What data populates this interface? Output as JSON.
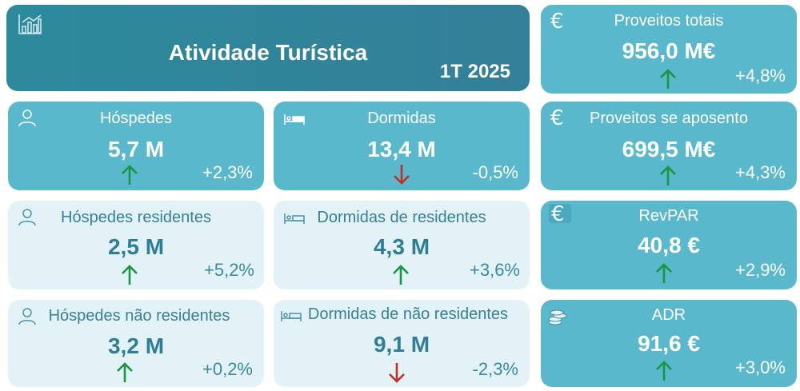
{
  "header": {
    "title": "Atividade Turística",
    "period": "1T 2025"
  },
  "cards": {
    "hospedes": {
      "label": "Hóspedes",
      "value": "5,7 M",
      "change": "+2,3%",
      "trend": "up"
    },
    "dormidas": {
      "label": "Dormidas",
      "value": "13,4 M",
      "change": "-0,5%",
      "trend": "down"
    },
    "hospedes_residentes": {
      "label": "Hóspedes residentes",
      "value": "2,5 M",
      "change": "+5,2%",
      "trend": "up"
    },
    "dormidas_residentes": {
      "label": "Dormidas de residentes",
      "value": "4,3 M",
      "change": "+3,6%",
      "trend": "up"
    },
    "hospedes_nao_residentes": {
      "label": "Hóspedes não residentes",
      "value": "3,2 M",
      "change": "+0,2%",
      "trend": "up"
    },
    "dormidas_nao_residentes": {
      "label": "Dormidas de não residentes",
      "value": "9,1 M",
      "change": "-2,3%",
      "trend": "down"
    },
    "proveitos_totais": {
      "label": "Proveitos totais",
      "value": "956,0 M€",
      "change": "+4,8%",
      "trend": "up",
      "icon_glyph": "€"
    },
    "proveitos_aposento": {
      "label": "Proveitos se aposento",
      "value": "699,5 M€",
      "change": "+4,3%",
      "trend": "up",
      "icon_glyph": "€"
    },
    "revpar": {
      "label": "RevPAR",
      "value": "40,8 €",
      "change": "+2,9%",
      "trend": "up",
      "icon_glyph": "€"
    },
    "adr": {
      "label": "ADR",
      "value": "91,6 €",
      "change": "+3,0%",
      "trend": "up"
    }
  },
  "icons": {
    "header": "bar-chart-icon",
    "person": "person-icon",
    "bed": "bed-icon",
    "euro": "euro-icon",
    "coins": "coins-icon",
    "up": "arrow-up-icon",
    "down": "arrow-down-icon"
  },
  "colors": {
    "header_bg": "#2f889b",
    "dark_card": "#5ab8cd",
    "light_card": "#e3f2f6",
    "up_arrow": "#1a9641",
    "down_arrow": "#c0302a"
  }
}
